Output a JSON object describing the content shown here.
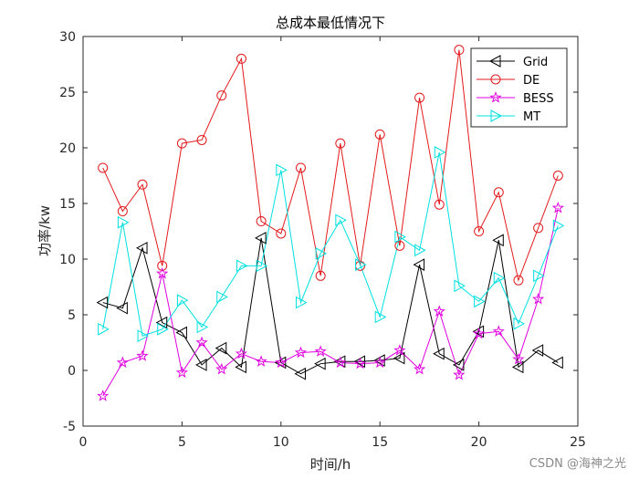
{
  "chart_data": {
    "type": "line",
    "title": "总成本最低情况下",
    "xlabel": "时间/h",
    "ylabel": "功率/kw",
    "xlim": [
      0,
      25
    ],
    "ylim": [
      -5,
      30
    ],
    "xticks": [
      0,
      5,
      10,
      15,
      20,
      25
    ],
    "yticks": [
      -5,
      0,
      5,
      10,
      15,
      20,
      25,
      30
    ],
    "grid": false,
    "legend_position": "top-right",
    "x": [
      1,
      2,
      3,
      4,
      5,
      6,
      7,
      8,
      9,
      10,
      11,
      12,
      13,
      14,
      15,
      16,
      17,
      18,
      19,
      20,
      21,
      22,
      23,
      24
    ],
    "series": [
      {
        "name": "Grid",
        "color": "#000000",
        "marker": "triangle-left",
        "values": [
          6.1,
          5.6,
          11.0,
          4.3,
          3.4,
          0.5,
          2.0,
          0.3,
          11.9,
          0.7,
          -0.3,
          0.6,
          0.8,
          0.8,
          0.9,
          1.1,
          9.5,
          1.5,
          0.5,
          3.5,
          11.7,
          0.3,
          1.8,
          0.7
        ]
      },
      {
        "name": "DE",
        "color": "#e31a1c",
        "marker": "circle",
        "values": [
          18.2,
          14.3,
          16.7,
          9.4,
          20.4,
          20.7,
          24.7,
          28.0,
          13.4,
          12.3,
          18.2,
          8.5,
          20.4,
          9.4,
          21.2,
          11.2,
          24.5,
          14.9,
          28.8,
          12.5,
          16.0,
          8.1,
          12.8,
          17.5
        ]
      },
      {
        "name": "BESS",
        "color": "#e000e0",
        "marker": "star",
        "values": [
          -2.3,
          0.7,
          1.3,
          8.7,
          -0.2,
          2.5,
          0.1,
          1.5,
          0.8,
          0.7,
          1.6,
          1.7,
          0.7,
          0.6,
          0.7,
          1.8,
          0.1,
          5.3,
          -0.4,
          3.3,
          3.5,
          1.0,
          6.4,
          14.6
        ]
      },
      {
        "name": "MT",
        "color": "#00e0e0",
        "marker": "triangle-right",
        "values": [
          3.7,
          13.3,
          3.1,
          3.7,
          6.3,
          3.9,
          6.6,
          9.4,
          9.4,
          18.0,
          6.1,
          10.5,
          13.5,
          9.5,
          4.8,
          12.0,
          10.8,
          19.6,
          7.6,
          6.2,
          8.3,
          4.2,
          8.5,
          13.0
        ]
      }
    ]
  },
  "watermark": "CSDN @海神之光"
}
